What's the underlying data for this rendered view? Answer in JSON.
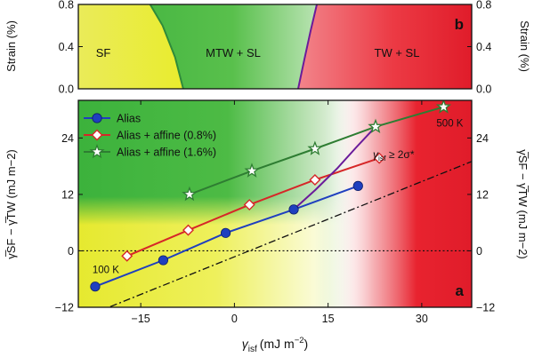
{
  "chart_data": [
    {
      "panel": "b",
      "type": "area",
      "xlim": [
        -25,
        38
      ],
      "ylim": [
        0,
        0.8
      ],
      "ylabel": "Strain (%)",
      "yticks": [
        0.0,
        0.4,
        0.8
      ],
      "ytick_labels": [
        "0.0",
        "0.4",
        "0.8"
      ],
      "regions": [
        {
          "name": "SF",
          "label": "SF",
          "color": "#e8e84a"
        },
        {
          "name": "MTW + SL",
          "label": "MTW + SL",
          "color": "#4fbf44"
        },
        {
          "name": "TW + SL",
          "label": "TW + SL",
          "color": "#e8202c"
        }
      ],
      "boundary_sf_mtw": {
        "x": [
          -13.5,
          -11.5,
          -9.5,
          -8.2
        ],
        "y": [
          0.8,
          0.6,
          0.3,
          0.0
        ],
        "color": "#2f8a3a"
      },
      "boundary_mtw_tw": {
        "x": [
          13.2,
          12.2,
          11.2,
          10.2
        ],
        "y": [
          0.8,
          0.55,
          0.28,
          0.0
        ],
        "color": "#6a1b9a"
      },
      "panel_label": "b"
    },
    {
      "panel": "a",
      "type": "line",
      "xlabel_main": "γ",
      "xlabel_sub": "isf",
      "xlabel_unit": "(mJ m",
      "xlabel_sup": "−2",
      "xlabel_close": ")",
      "ylabel": "γ̅SF − γ̅TW (mJ m−2)",
      "xlim": [
        -25,
        38
      ],
      "ylim": [
        -12,
        32
      ],
      "xticks": [
        -15,
        0,
        15,
        30
      ],
      "xtick_labels": [
        "−15",
        "0",
        "15",
        "30"
      ],
      "yticks": [
        -12,
        0,
        12,
        24
      ],
      "ytick_labels": [
        "−12",
        "0",
        "12",
        "24"
      ],
      "series": [
        {
          "name": "Alias",
          "color": "#1f3fbf",
          "marker": "circle",
          "x": [
            -22.3,
            -11.4,
            -1.4,
            9.5,
            19.8
          ],
          "y": [
            -7.6,
            -2.0,
            3.8,
            8.8,
            13.8
          ]
        },
        {
          "name": "Alias + affine (0.8%)",
          "color": "#d62728",
          "marker": "diamond",
          "x": [
            -17.2,
            -7.4,
            2.4,
            12.9,
            23.2
          ],
          "y": [
            -1.1,
            4.4,
            9.8,
            15.1,
            19.7
          ]
        },
        {
          "name": "Alias + affine (1.6%)",
          "color": "#2e7d32",
          "marker": "star",
          "x": [
            -7.2,
            2.8,
            12.9,
            22.6,
            33.5
          ],
          "y": [
            12.0,
            17.0,
            21.7,
            26.4,
            30.6
          ]
        }
      ],
      "reference_line": {
        "x": [
          -22,
          38
        ],
        "y": [
          -13,
          19
        ],
        "style": "dash-dot",
        "color": "#000000"
      },
      "criterion_curve": {
        "x": [
          9.5,
          13.0,
          16.5,
          19.5,
          22.6
        ],
        "y": [
          8.8,
          13.0,
          17.6,
          22.0,
          26.4
        ],
        "color": "#6a1b9a"
      },
      "criterion_label_main": "γ",
      "criterion_label_sub": "isf",
      "criterion_label_rest": " ≥ 2σ*",
      "annotations": [
        {
          "text": "500 K",
          "x": 34.5,
          "y": 26.4
        },
        {
          "text": "100 K",
          "x": -20.6,
          "y": -4.7
        }
      ],
      "zero_line": {
        "y": 0,
        "style": "dotted"
      },
      "panel_label": "a",
      "background_gradient": {
        "left_bottom": "#e8e84a",
        "left_top": "#4fbf44",
        "mid": "#ffffff",
        "right": "#e8202c"
      }
    }
  ]
}
